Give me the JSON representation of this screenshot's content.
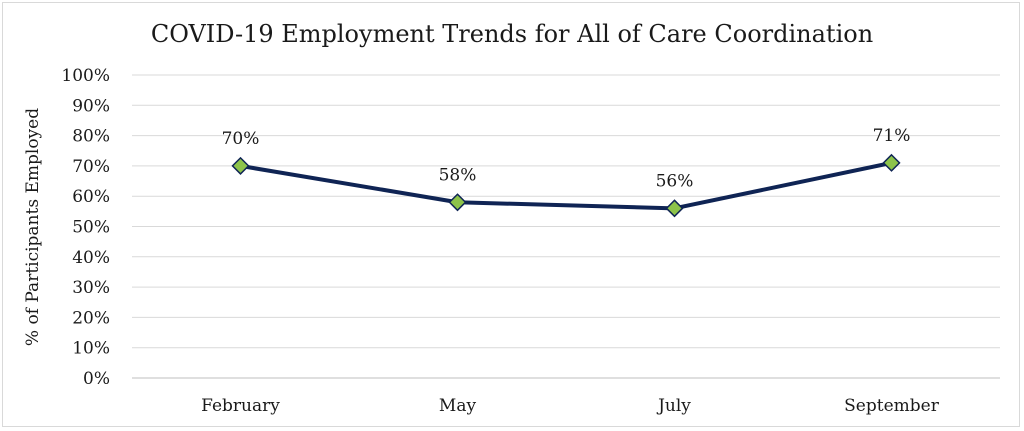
{
  "chart_data": {
    "type": "line",
    "title": "COVID-19 Employment Trends for All of Care Coordination",
    "xlabel": "",
    "ylabel": "% of Participants Employed",
    "categories": [
      "February",
      "May",
      "July",
      "September"
    ],
    "series": [
      {
        "values": [
          70,
          58,
          56,
          71
        ],
        "labels": [
          "70%",
          "58%",
          "56%",
          "71%"
        ]
      }
    ],
    "ylim": [
      0,
      100
    ],
    "yticks": [
      "0%",
      "10%",
      "20%",
      "30%",
      "40%",
      "50%",
      "60%",
      "70%",
      "80%",
      "90%",
      "100%"
    ],
    "grid": true,
    "legend": "none",
    "colors": {
      "line": "#0f2454",
      "marker": "#8dc34a"
    }
  }
}
